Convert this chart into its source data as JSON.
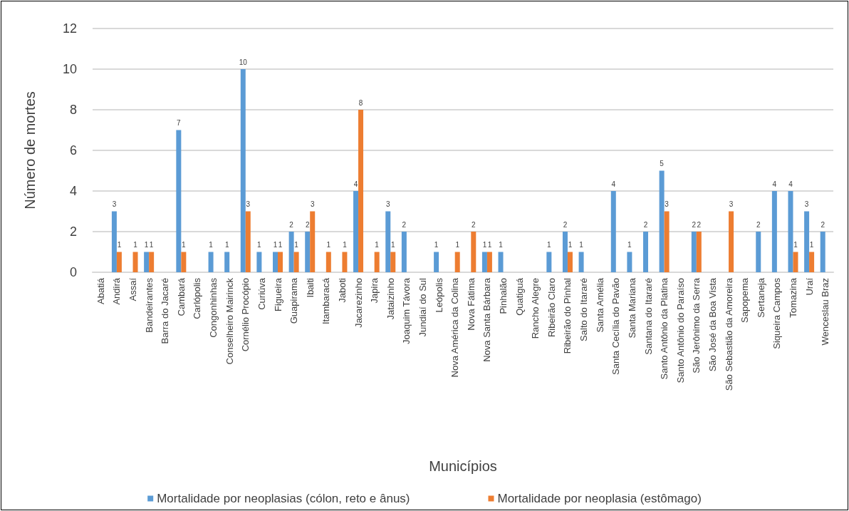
{
  "chart_data": {
    "type": "bar",
    "xlabel": "Municípios",
    "ylabel": "Número de mortes",
    "categories": [
      "Abatiá",
      "Andirá",
      "Assaí",
      "Bandeirantes",
      "Barra do Jacaré",
      "Cambará",
      "Carlópolis",
      "Congonhinhas",
      "Conselheiro Mairinck",
      "Cornélio Procópio",
      "Curiúva",
      "Figueira",
      "Guapirama",
      "Ibaiti",
      "Itambaracá",
      "Jaboti",
      "Jacarezinho",
      "Japira",
      "Jataizinho",
      "Joaquim Távora",
      "Jundiaí do Sul",
      "Leópolis",
      "Nova América da Colina",
      "Nova Fátima",
      "Nova Santa Bárbara",
      "Pinhalão",
      "Quatiguá",
      "Rancho Alegre",
      "Ribeirão Claro",
      "Ribeirão do Pinhal",
      "Salto do Itararé",
      "Santa Amélia",
      "Santa Cecília do Pavão",
      "Santa Mariana",
      "Santana do Itararé",
      "Santo Antônio da Platina",
      "Santo Antônio do Paraíso",
      "São Jerônimo da Serra",
      "São José da Boa Vista",
      "São Sebastião da Amoreira",
      "Sapopema",
      "Sertaneja",
      "Siqueira Campos",
      "Tomazina",
      "Uraí",
      "Wenceslau Braz"
    ],
    "series": [
      {
        "name": "Mortalidade por neoplasias (cólon, reto e ânus)",
        "color": "#5b9bd5",
        "values": [
          0,
          3,
          0,
          1,
          0,
          7,
          0,
          1,
          1,
          10,
          1,
          1,
          2,
          2,
          0,
          0,
          4,
          0,
          3,
          2,
          0,
          1,
          0,
          0,
          1,
          1,
          0,
          0,
          1,
          2,
          1,
          0,
          4,
          1,
          2,
          5,
          0,
          2,
          0,
          0,
          0,
          2,
          4,
          4,
          3,
          2
        ],
        "value_labels": [
          null,
          "3",
          null,
          "1",
          null,
          "7",
          null,
          "1",
          "1",
          "10",
          "1",
          "1",
          "2",
          "2",
          null,
          null,
          "4",
          null,
          "3",
          "2",
          null,
          "1",
          null,
          null,
          "1",
          "1",
          null,
          null,
          "1",
          "2",
          "1",
          null,
          "4",
          "1",
          "2",
          "5",
          null,
          "2",
          null,
          null,
          null,
          "2",
          "4",
          "4",
          "3",
          "2"
        ]
      },
      {
        "name": "Mortalidade por neoplasia (estômago)",
        "color": "#ed7d31",
        "values": [
          0,
          1,
          1,
          1,
          0,
          1,
          0,
          0,
          0,
          3,
          0,
          1,
          1,
          3,
          1,
          1,
          8,
          1,
          1,
          0,
          0,
          0,
          1,
          2,
          1,
          0,
          0,
          0,
          0,
          1,
          0,
          0,
          0,
          0,
          0,
          3,
          0,
          2,
          0,
          3,
          0,
          0,
          0,
          1,
          1,
          0
        ],
        "value_labels": [
          null,
          "1",
          "1",
          "1",
          null,
          "1",
          null,
          null,
          null,
          "3",
          null,
          "1",
          "1",
          "3",
          "1",
          "1",
          "8",
          "1",
          "1",
          null,
          null,
          null,
          "1",
          "2",
          "1",
          null,
          null,
          null,
          null,
          "1",
          null,
          null,
          null,
          null,
          null,
          "3",
          null,
          "2",
          null,
          "3",
          null,
          null,
          null,
          "1",
          "1",
          null
        ]
      }
    ],
    "ylim": [
      0,
      12
    ],
    "yticks": [
      0,
      2,
      4,
      6,
      8,
      10,
      12
    ],
    "grid": "y",
    "legend": "bottom"
  }
}
